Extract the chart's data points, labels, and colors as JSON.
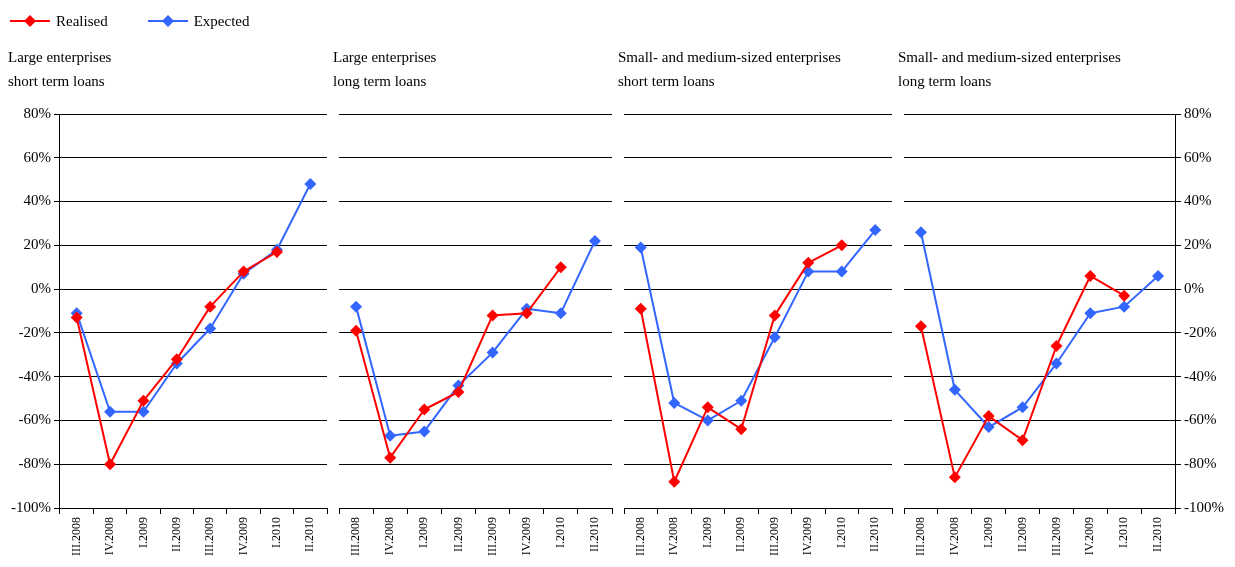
{
  "chart_data": [
    {
      "type": "line",
      "title": "Large enterprises\nshort term loans",
      "categories": [
        "III.2008",
        "IV.2008",
        "I.2009",
        "II.2009",
        "III.2009",
        "IV.2009",
        "I.2010",
        "II.2010"
      ],
      "series": [
        {
          "name": "Realised",
          "color": "#ff0000",
          "values": [
            -13,
            -80,
            -51,
            -32,
            -8,
            8,
            17,
            null
          ]
        },
        {
          "name": "Expected",
          "color": "#3366ff",
          "values": [
            -11,
            -56,
            -56,
            -34,
            -18,
            7,
            18,
            48
          ]
        }
      ],
      "ylim": [
        -100,
        80
      ],
      "yticks": [
        {
          "value": -100,
          "label": "-100%"
        },
        {
          "value": -80,
          "label": "-80%"
        },
        {
          "value": -60,
          "label": "-60%"
        },
        {
          "value": -40,
          "label": "-40%"
        },
        {
          "value": -20,
          "label": "-20%"
        },
        {
          "value": 0,
          "label": "0%"
        },
        {
          "value": 20,
          "label": "20%"
        },
        {
          "value": 40,
          "label": "40%"
        },
        {
          "value": 60,
          "label": "60%"
        },
        {
          "value": 80,
          "label": "80%"
        }
      ],
      "grid": "y",
      "marker": "diamond",
      "legend": "top left"
    },
    {
      "type": "line",
      "title": "Large enterprises\nlong term loans",
      "categories": [
        "III.2008",
        "IV.2008",
        "I.2009",
        "II.2009",
        "III.2009",
        "IV.2009",
        "I.2010",
        "II.2010"
      ],
      "series": [
        {
          "color": "#ff0000",
          "values": [
            -19,
            -77,
            -55,
            -47,
            -12,
            -11,
            10,
            null
          ]
        },
        {
          "color": "#3366ff",
          "values": [
            -8,
            -67,
            -65,
            -44,
            -29,
            -9,
            -11,
            22
          ]
        }
      ],
      "ylim": [
        -100,
        80
      ],
      "yticks": [
        {
          "value": -100,
          "label": null
        },
        {
          "value": -80,
          "label": null
        },
        {
          "value": -60,
          "label": null
        },
        {
          "value": -40,
          "label": null
        },
        {
          "value": -20,
          "label": null
        },
        {
          "value": 0,
          "label": null
        },
        {
          "value": 20,
          "label": null
        },
        {
          "value": 40,
          "label": null
        },
        {
          "value": 60,
          "label": null
        },
        {
          "value": 80,
          "label": null
        }
      ],
      "grid": "y",
      "marker": "diamond",
      "tick_labels": "x"
    },
    {
      "type": "line",
      "title": "Small- and medium-sized enterprises\nshort term loans",
      "categories": [
        "III.2008",
        "IV.2008",
        "I.2009",
        "II.2009",
        "III.2009",
        "IV.2009",
        "I.2010",
        "II.2010"
      ],
      "series": [
        {
          "color": "#ff0000",
          "values": [
            -9,
            -88,
            -54,
            -64,
            -12,
            12,
            20,
            null
          ]
        },
        {
          "color": "#3366ff",
          "values": [
            19,
            -52,
            -60,
            -51,
            -22,
            8,
            8,
            27
          ]
        }
      ],
      "ylim": [
        -100,
        80
      ],
      "yticks": [
        {
          "value": -100,
          "label": null
        },
        {
          "value": -80,
          "label": null
        },
        {
          "value": -60,
          "label": null
        },
        {
          "value": -40,
          "label": null
        },
        {
          "value": -20,
          "label": null
        },
        {
          "value": 0,
          "label": null
        },
        {
          "value": 20,
          "label": null
        },
        {
          "value": 40,
          "label": null
        },
        {
          "value": 60,
          "label": null
        },
        {
          "value": 80,
          "label": null
        }
      ],
      "grid": "y",
      "marker": "diamond",
      "tick_labels": "x"
    },
    {
      "type": "line",
      "title": "Small- and medium-sized enterprises\nlong term loans",
      "categories": [
        "III.2008",
        "IV.2008",
        "I.2009",
        "II.2009",
        "III.2009",
        "IV.2009",
        "I.2010",
        "II.2010"
      ],
      "series": [
        {
          "color": "#ff0000",
          "values": [
            -17,
            -86,
            -58,
            -69,
            -26,
            6,
            -3,
            null
          ]
        },
        {
          "color": "#3366ff",
          "values": [
            26,
            -46,
            -63,
            -54,
            -34,
            -11,
            -8,
            6
          ]
        }
      ],
      "ylim": [
        -100,
        80
      ],
      "yticks": [
        {
          "value": -100,
          "label": "-100%"
        },
        {
          "value": -80,
          "label": "-80%"
        },
        {
          "value": -60,
          "label": "-60%"
        },
        {
          "value": -40,
          "label": "-40%"
        },
        {
          "value": -20,
          "label": "-20%"
        },
        {
          "value": 0,
          "label": "0%"
        },
        {
          "value": 20,
          "label": "20%"
        },
        {
          "value": 40,
          "label": "40%"
        },
        {
          "value": 60,
          "label": "60%"
        },
        {
          "value": 80,
          "label": "80%"
        }
      ],
      "grid": "y",
      "marker": "diamond"
    }
  ]
}
